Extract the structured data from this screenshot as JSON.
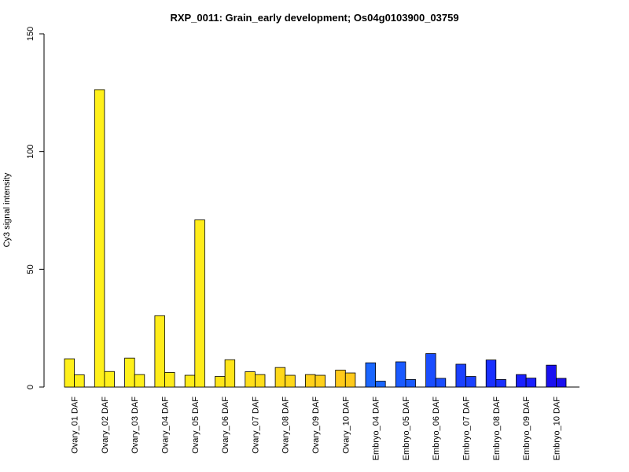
{
  "chart_data": {
    "type": "bar",
    "title": "RXP_0011: Grain_early development; Os04g0103900_03759",
    "xlabel": "",
    "ylabel": "Cy3 signal intensity",
    "ylim": [
      0,
      150
    ],
    "yticks": [
      "0",
      "50",
      "100",
      "150"
    ],
    "categories": [
      "Ovary_01 DAF",
      "Ovary_02 DAF",
      "Ovary_03 DAF",
      "Ovary_04 DAF",
      "Ovary_05 DAF",
      "Ovary_06 DAF",
      "Ovary_07 DAF",
      "Ovary_08 DAF",
      "Ovary_09 DAF",
      "Ovary_10 DAF",
      "Embryo_04 DAF",
      "Embryo_05 DAF",
      "Embryo_06 DAF",
      "Embryo_07 DAF",
      "Embryo_08 DAF",
      "Embryo_09 DAF",
      "Embryo_10 DAF"
    ],
    "series": [
      {
        "values": [
          12,
          126.3,
          12.3,
          30.3,
          5,
          4.5,
          6.5,
          8.3,
          5.3,
          7.2,
          10.3,
          10.7,
          14.2,
          9.7,
          11.5,
          5.3,
          9.3
        ]
      },
      {
        "values": [
          5.2,
          6.6,
          5.3,
          6.2,
          71,
          11.6,
          5.3,
          5,
          5,
          6,
          2.5,
          3.2,
          3.7,
          4.5,
          3.2,
          3.8,
          3.7
        ]
      }
    ],
    "bar_colors": [
      "#fff01a",
      "#fff01a",
      "#fff01a",
      "#ffec1a",
      "#ffec1a",
      "#ffe51a",
      "#ffde1a",
      "#ffd81a",
      "#ffd01a",
      "#ffca1a",
      "#1a66ff",
      "#1a5aff",
      "#1a4dff",
      "#1a40ff",
      "#1a30ff",
      "#1a20ff",
      "#1a10f0"
    ],
    "grid": false
  }
}
